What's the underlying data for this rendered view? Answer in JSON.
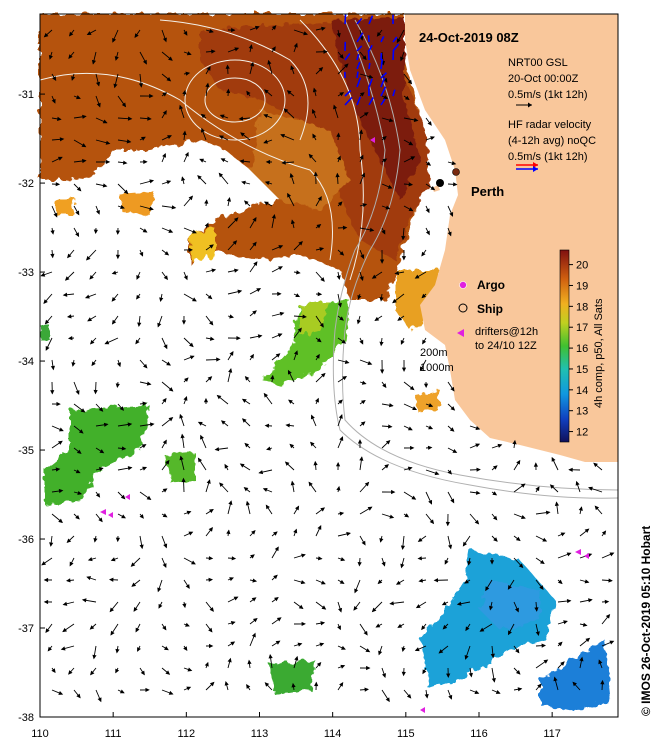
{
  "title": "24-Oct-2019 08Z",
  "credit": "© IMOS 26-Oct-2019 05:10 Hobart",
  "map": {
    "lon_range": [
      110,
      117.9
    ],
    "lat_range": [
      -38,
      -30.1
    ],
    "lon_ticks": [
      "110",
      "111",
      "112",
      "113",
      "114",
      "115",
      "116",
      "117"
    ],
    "lat_ticks": [
      "-31",
      "-32",
      "-33",
      "-34",
      "-35",
      "-36",
      "-37",
      "-38"
    ],
    "land_color": "#f9c79b",
    "city": {
      "name": "Perth",
      "lon": 115.85,
      "lat": -31.95
    }
  },
  "legend": {
    "gsl_line1": "NRT00 GSL",
    "gsl_line2": "20-Oct 00:00Z",
    "gsl_line3": "0.5m/s (1kt 12h)",
    "hf_line1": "HF radar velocity",
    "hf_line2": "(4-12h avg) noQC",
    "hf_line3": "0.5m/s (1kt 12h)",
    "argo": "Argo",
    "ship": "Ship",
    "drifters_line1": "drifters@12h",
    "drifters_line2": "to 24/10 12Z",
    "isobath_200": "200m",
    "isobath_1000": "1000m"
  },
  "colorbar": {
    "label": "4h comp, p50, All Sats",
    "ticks": [
      "12",
      "13",
      "14",
      "15",
      "16",
      "17",
      "18",
      "19",
      "20"
    ],
    "range": [
      11.5,
      20.7
    ]
  },
  "colors": {
    "argo_marker": "#e020e0",
    "hf_red": "#ff0000",
    "hf_blue": "#0000ff",
    "drifter": "#e020e0"
  }
}
